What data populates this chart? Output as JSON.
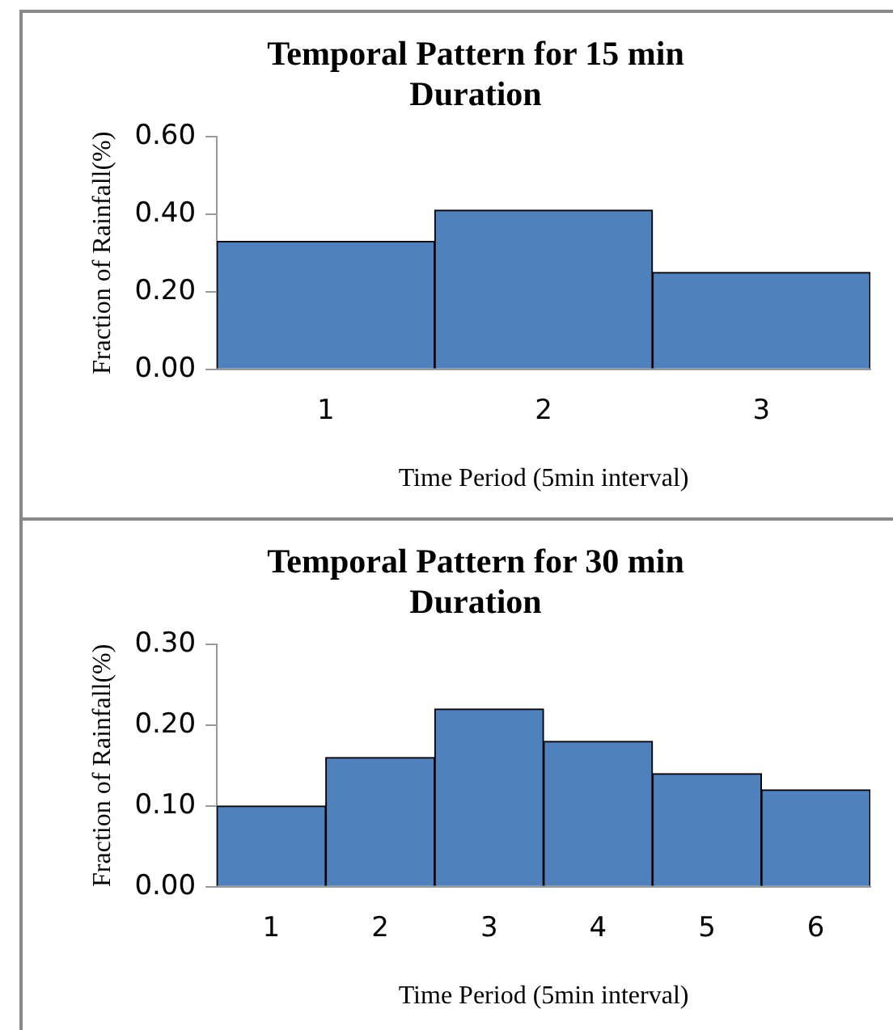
{
  "chart_data": [
    {
      "type": "bar",
      "title": "Temporal Pattern for 15 min Duration",
      "xlabel": "Time Period (5min interval)",
      "ylabel": "Fraction of Rainfall(%)",
      "categories": [
        "1",
        "2",
        "3"
      ],
      "values": [
        0.33,
        0.41,
        0.25
      ],
      "color": "#4f81bd",
      "ylim": [
        0,
        0.6
      ],
      "yticks": [
        {
          "value": 0,
          "label": "0.00"
        },
        {
          "value": 0.2,
          "label": "0.20"
        },
        {
          "value": 0.4,
          "label": "0.40"
        },
        {
          "value": 0.6,
          "label": "0.60"
        }
      ],
      "grid": false,
      "legend": false
    },
    {
      "type": "bar",
      "title": "Temporal Pattern for 30 min Duration",
      "xlabel": "Time Period (5min interval)",
      "ylabel": "Fraction of Rainfall(%)",
      "categories": [
        "1",
        "2",
        "3",
        "4",
        "5",
        "6"
      ],
      "values": [
        0.1,
        0.16,
        0.22,
        0.18,
        0.14,
        0.12
      ],
      "color": "#4f81bd",
      "ylim": [
        0,
        0.3
      ],
      "yticks": [
        {
          "value": 0,
          "label": "0.00"
        },
        {
          "value": 0.1,
          "label": "0.10"
        },
        {
          "value": 0.2,
          "label": "0.20"
        },
        {
          "value": 0.3,
          "label": "0.30"
        }
      ],
      "grid": false,
      "legend": false
    }
  ]
}
